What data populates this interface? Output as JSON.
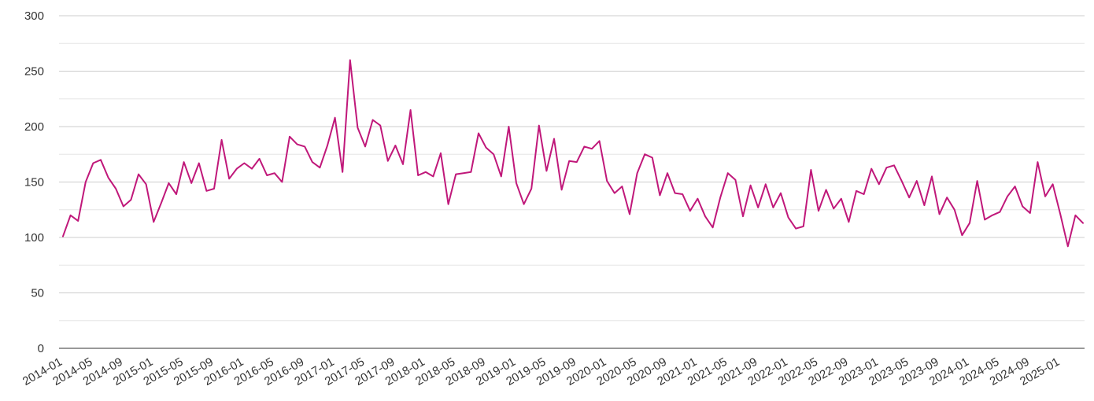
{
  "chart_data": {
    "type": "line",
    "title": "",
    "xlabel": "",
    "ylabel": "",
    "ylim": [
      0,
      300
    ],
    "yticks": [
      0,
      50,
      100,
      150,
      200,
      250,
      300
    ],
    "grid": true,
    "legend": "none",
    "x_tick_labels": [
      "2014-01",
      "2014-05",
      "2014-09",
      "2015-01",
      "2015-05",
      "2015-09",
      "2016-01",
      "2016-05",
      "2016-09",
      "2017-01",
      "2017-05",
      "2017-09",
      "2018-01",
      "2018-05",
      "2018-09",
      "2019-01",
      "2019-05",
      "2019-09",
      "2020-01",
      "2020-05",
      "2020-09",
      "2021-01",
      "2021-05",
      "2021-09",
      "2022-01",
      "2022-05",
      "2022-09",
      "2023-01",
      "2023-05",
      "2023-09",
      "2024-01",
      "2024-05",
      "2024-09",
      "2025-01"
    ],
    "series": [
      {
        "color": "#c0187a",
        "start": "2014-01",
        "values": [
          101,
          120,
          115,
          150,
          167,
          170,
          154,
          144,
          128,
          134,
          157,
          148,
          114,
          131,
          149,
          139,
          168,
          149,
          167,
          142,
          144,
          188,
          153,
          162,
          167,
          162,
          171,
          156,
          158,
          150,
          191,
          184,
          182,
          168,
          163,
          183,
          208,
          159,
          260,
          199,
          182,
          206,
          201,
          169,
          183,
          166,
          215,
          156,
          159,
          155,
          176,
          130,
          157,
          158,
          159,
          194,
          181,
          175,
          155,
          200,
          149,
          130,
          144,
          201,
          160,
          189,
          143,
          169,
          168,
          182,
          180,
          187,
          151,
          140,
          146,
          121,
          158,
          175,
          172,
          138,
          158,
          140,
          139,
          124,
          135,
          119,
          109,
          136,
          158,
          152,
          119,
          147,
          127,
          148,
          127,
          140,
          118,
          108,
          110,
          161,
          124,
          143,
          126,
          135,
          114,
          142,
          139,
          162,
          148,
          163,
          165,
          151,
          136,
          151,
          129,
          155,
          121,
          136,
          125,
          102,
          113,
          151,
          116,
          120,
          123,
          137,
          146,
          128,
          122,
          168,
          137,
          148,
          121,
          92,
          120,
          113
        ]
      }
    ]
  }
}
